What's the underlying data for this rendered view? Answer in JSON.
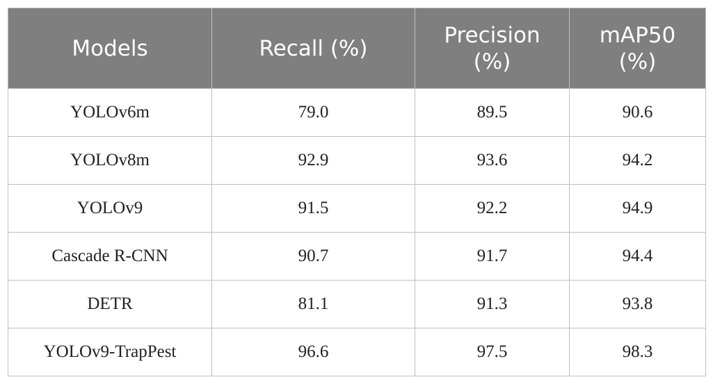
{
  "table": {
    "header": [
      "Models",
      "Recall (%)",
      "Precision (%)",
      "mAP50 (%)"
    ],
    "rows": [
      [
        "YOLOv6m",
        "79.0",
        "89.5",
        "90.6"
      ],
      [
        "YOLOv8m",
        "92.9",
        "93.6",
        "94.2"
      ],
      [
        "YOLOv9",
        "91.5",
        "92.2",
        "94.9"
      ],
      [
        "Cascade R-CNN",
        "90.7",
        "91.7",
        "94.4"
      ],
      [
        "DETR",
        "81.1",
        "91.3",
        "93.8"
      ],
      [
        "YOLOv9-TrapPest",
        "96.6",
        "97.5",
        "98.3"
      ]
    ]
  }
}
